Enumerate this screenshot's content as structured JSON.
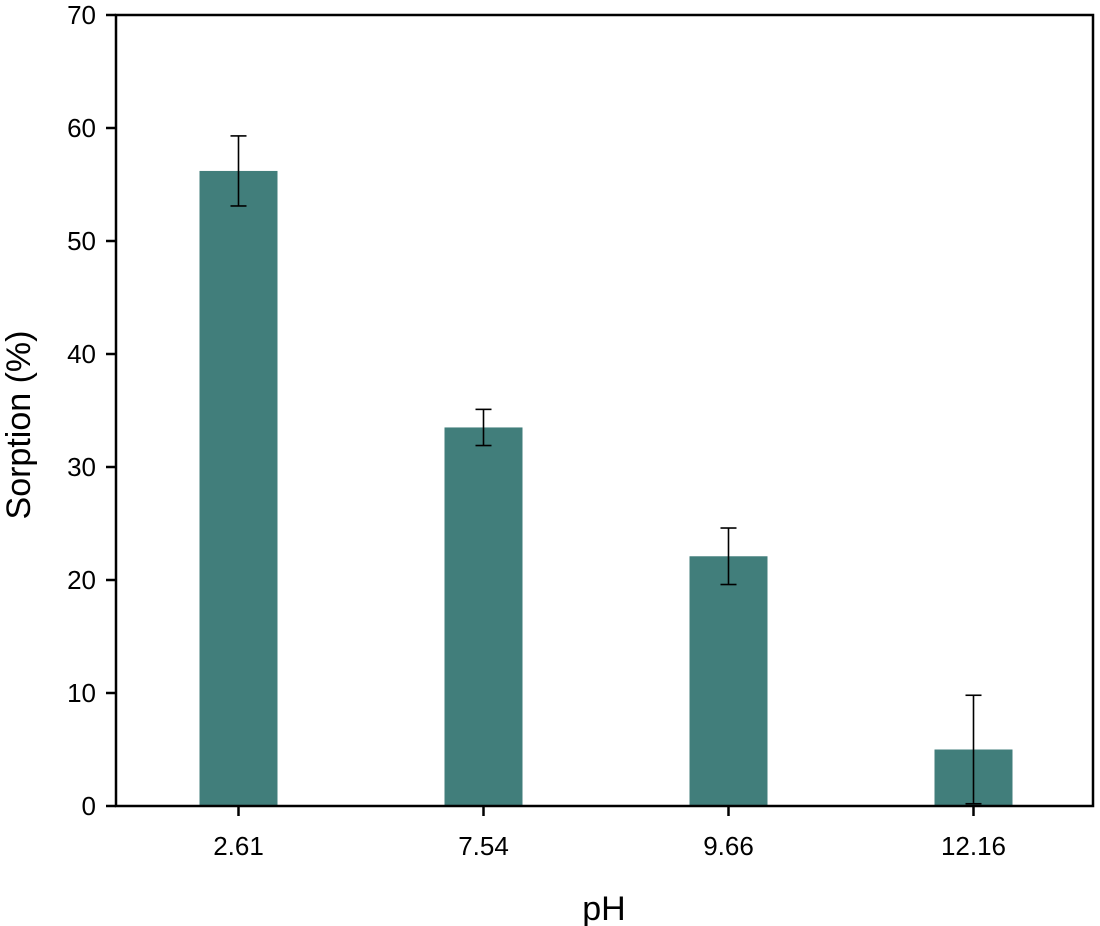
{
  "chart_data": {
    "type": "bar",
    "categories": [
      "2.61",
      "7.54",
      "9.66",
      "12.16"
    ],
    "series": [
      {
        "values": [
          56.2,
          33.5,
          22.1,
          5.0
        ],
        "error": [
          3.1,
          1.6,
          2.5,
          4.8
        ]
      }
    ],
    "xlabel": "pH",
    "ylabel": "Sorption (%)",
    "ylim": [
      0,
      70
    ],
    "yticks": [
      0,
      10,
      20,
      30,
      40,
      50,
      60,
      70
    ],
    "grid": false,
    "bar_color": "#417e7b"
  }
}
